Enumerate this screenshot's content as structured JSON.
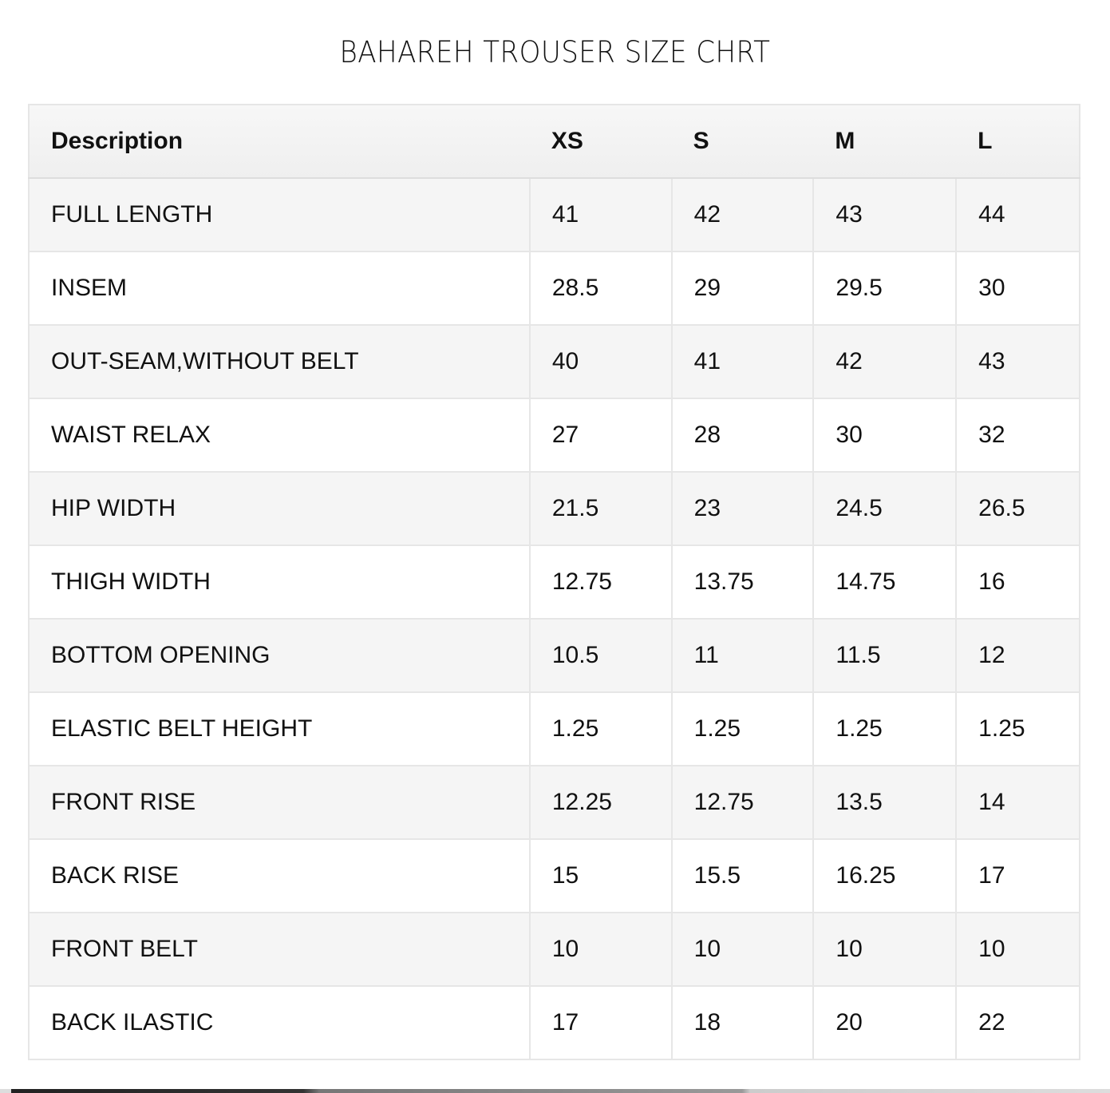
{
  "title": "BAHAREH TROUSER SIZE CHRT",
  "table": {
    "headers": [
      "Description",
      "XS",
      "S",
      "M",
      "L"
    ],
    "rows": [
      [
        "FULL LENGTH",
        "41",
        "42",
        "43",
        "44"
      ],
      [
        "INSEM",
        "28.5",
        "29",
        "29.5",
        "30"
      ],
      [
        "OUT-SEAM,WITHOUT BELT",
        "40",
        "41",
        "42",
        "43"
      ],
      [
        "WAIST RELAX",
        "27",
        "28",
        "30",
        "32"
      ],
      [
        "HIP WIDTH",
        "21.5",
        "23",
        "24.5",
        "26.5"
      ],
      [
        "THIGH WIDTH",
        "12.75",
        "13.75",
        "14.75",
        "16"
      ],
      [
        "BOTTOM OPENING",
        "10.5",
        "11",
        "11.5",
        "12"
      ],
      [
        "ELASTIC BELT HEIGHT",
        "1.25",
        "1.25",
        "1.25",
        "1.25"
      ],
      [
        "FRONT RISE",
        "12.25",
        "12.75",
        "13.5",
        "14"
      ],
      [
        "BACK RISE",
        "15",
        "15.5",
        "16.25",
        "17"
      ],
      [
        "FRONT BELT",
        "10",
        "10",
        "10",
        "10"
      ],
      [
        "BACK ILASTIC",
        "17",
        "18",
        "20",
        "22"
      ]
    ]
  }
}
